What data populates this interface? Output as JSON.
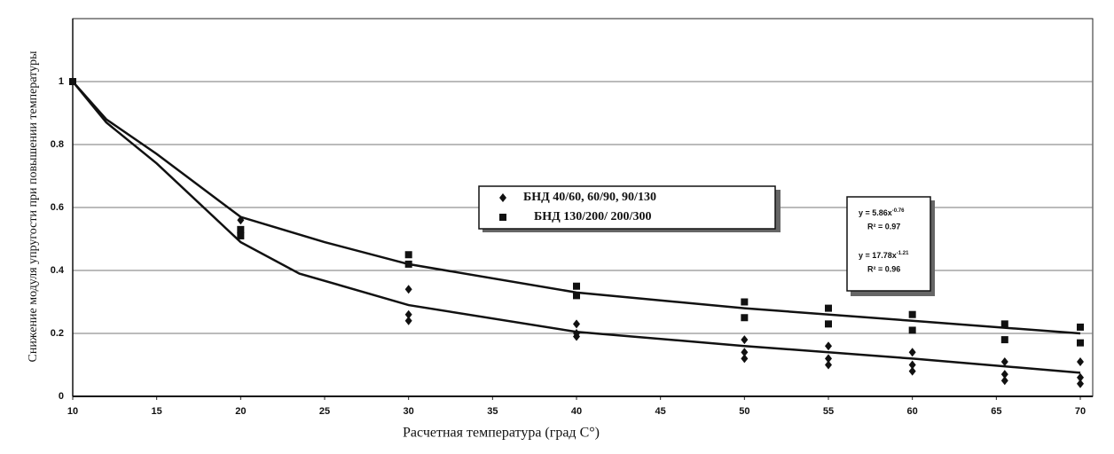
{
  "chart_data": {
    "type": "scatter",
    "x_label": "Расчетная температура (град С°)",
    "y_label": "Снижение модуля упругости при повышении температуры",
    "xlim": [
      10,
      70
    ],
    "ylim": [
      0,
      1.2
    ],
    "xticks": [
      10,
      15,
      20,
      25,
      30,
      35,
      40,
      45,
      50,
      55,
      60,
      65,
      70
    ],
    "yticks": [
      0,
      0.2,
      0.4,
      0.6,
      0.8,
      1
    ],
    "grid": true,
    "series": [
      {
        "name": "БНД 40/60, 60/90, 90/130",
        "marker": "diamond",
        "color": "#111111",
        "x": [
          10,
          20,
          30,
          30,
          30,
          40,
          40,
          40,
          50,
          50,
          50,
          55,
          55,
          55,
          60,
          60,
          60,
          65.5,
          65.5,
          65.5,
          70,
          70,
          70
        ],
        "values": [
          1,
          0.56,
          0.34,
          0.26,
          0.24,
          0.23,
          0.2,
          0.19,
          0.18,
          0.14,
          0.12,
          0.16,
          0.12,
          0.1,
          0.14,
          0.1,
          0.08,
          0.11,
          0.07,
          0.05,
          0.11,
          0.06,
          0.04
        ]
      },
      {
        "name": "БНД 130/200/ 200/300",
        "marker": "square",
        "color": "#111111",
        "x": [
          10,
          20,
          20,
          30,
          30,
          40,
          40,
          50,
          50,
          55,
          55,
          60,
          60,
          65.5,
          65.5,
          70,
          70
        ],
        "values": [
          1,
          0.53,
          0.51,
          0.45,
          0.42,
          0.35,
          0.32,
          0.3,
          0.25,
          0.28,
          0.23,
          0.26,
          0.21,
          0.23,
          0.18,
          0.22,
          0.17
        ]
      }
    ],
    "trendlines": [
      {
        "color": "#111111",
        "x": [
          10,
          12,
          15,
          20,
          25,
          30,
          40,
          50,
          60,
          70
        ],
        "values": [
          1,
          0.88,
          0.77,
          0.57,
          0.49,
          0.42,
          0.33,
          0.28,
          0.24,
          0.2
        ]
      },
      {
        "color": "#111111",
        "x": [
          10,
          12,
          15,
          20,
          23.5,
          30,
          40,
          50,
          60,
          70
        ],
        "values": [
          1,
          0.87,
          0.74,
          0.49,
          0.39,
          0.29,
          0.205,
          0.16,
          0.12,
          0.075
        ]
      }
    ],
    "equations": [
      {
        "text": "y = 5.86x",
        "exponent": "-0.76",
        "r2": "R² = 0.97"
      },
      {
        "text": "y = 17.78x",
        "exponent": "-1.21",
        "r2": "R² = 0.96"
      }
    ]
  }
}
